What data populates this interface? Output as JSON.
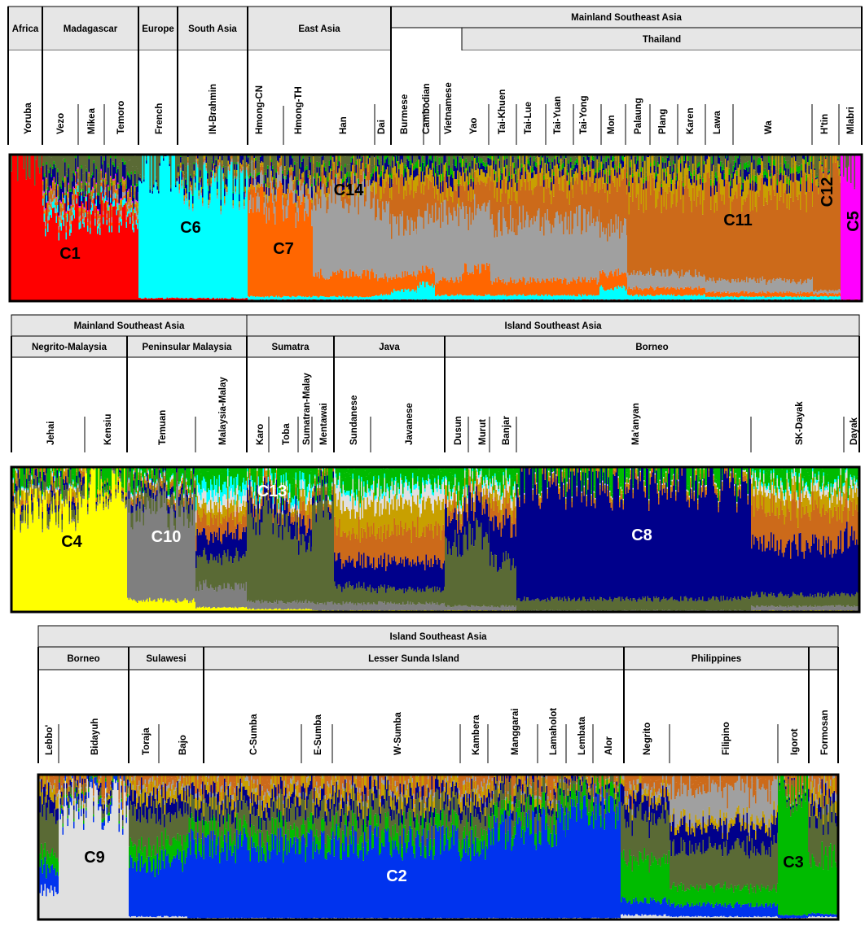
{
  "colors": {
    "C1": "#ff0000",
    "C2": "#0033ee",
    "C3": "#00bb00",
    "C4": "#ffff00",
    "C5": "#ff00ff",
    "C6": "#00ffff",
    "C7": "#ff6600",
    "C8": "#00008b",
    "C9": "#e0e0e0",
    "C10": "#7f7f7f",
    "C11": "#cc6a1a",
    "C12": "#c8a000",
    "C13": "#5a6a35",
    "C14": "#a0a0a0"
  },
  "chart_data": [
    {
      "type": "bar",
      "subtype": "stacked-admixture",
      "panel": "top",
      "header_groups": [
        "Africa",
        "Madagascar",
        "Europe",
        "South Asia",
        "East Asia",
        "Mainland Southeast Asia"
      ],
      "header_subgroups": [
        "Thailand"
      ],
      "populations": [
        "Yoruba",
        "Vezo",
        "Mikea",
        "Temoro",
        "French",
        "IN-Brahmin",
        "Hmong-CN",
        "Hmong-TH",
        "Han",
        "Dai",
        "Burmese",
        "Cambodian",
        "Vietnamese",
        "Yao",
        "Tai-Khuen",
        "Tai-Lue",
        "Tai-Yuan",
        "Tai-Yong",
        "Mon",
        "Palaung",
        "Plang",
        "Karen",
        "Lawa",
        "Wa",
        "H'tin",
        "Mlabri"
      ],
      "component_labels": [
        "C1",
        "C6",
        "C7",
        "C14",
        "C11",
        "C12",
        "C5"
      ],
      "series": [
        {
          "name": "C1",
          "values": [
            0.98,
            0.55,
            0.6,
            0.58,
            0.02,
            0.02,
            0.01,
            0.01,
            0.01,
            0.01,
            0.01,
            0.01,
            0.01,
            0.01,
            0.01,
            0.01,
            0.01,
            0.01,
            0.01,
            0.01,
            0.01,
            0.01,
            0.01,
            0.01,
            0.01,
            0.01
          ]
        },
        {
          "name": "C6",
          "values": [
            0.0,
            0.05,
            0.04,
            0.04,
            0.94,
            0.75,
            0.02,
            0.02,
            0.02,
            0.03,
            0.06,
            0.1,
            0.03,
            0.03,
            0.03,
            0.03,
            0.03,
            0.03,
            0.08,
            0.03,
            0.03,
            0.03,
            0.02,
            0.02,
            0.02,
            0.0
          ]
        },
        {
          "name": "C7",
          "values": [
            0.0,
            0.02,
            0.02,
            0.02,
            0.0,
            0.0,
            0.65,
            0.6,
            0.15,
            0.12,
            0.1,
            0.1,
            0.1,
            0.18,
            0.1,
            0.1,
            0.1,
            0.1,
            0.1,
            0.05,
            0.05,
            0.05,
            0.03,
            0.03,
            0.02,
            0.0
          ]
        },
        {
          "name": "C14",
          "values": [
            0.0,
            0.03,
            0.02,
            0.03,
            0.0,
            0.02,
            0.1,
            0.1,
            0.55,
            0.45,
            0.35,
            0.35,
            0.45,
            0.4,
            0.4,
            0.4,
            0.4,
            0.42,
            0.3,
            0.1,
            0.1,
            0.1,
            0.08,
            0.08,
            0.02,
            0.0
          ]
        },
        {
          "name": "C11",
          "values": [
            0.0,
            0.05,
            0.04,
            0.05,
            0.0,
            0.02,
            0.05,
            0.05,
            0.1,
            0.15,
            0.25,
            0.2,
            0.15,
            0.18,
            0.25,
            0.25,
            0.25,
            0.25,
            0.3,
            0.55,
            0.55,
            0.55,
            0.6,
            0.6,
            0.85,
            0.0
          ]
        },
        {
          "name": "C12",
          "values": [
            0.0,
            0.03,
            0.02,
            0.03,
            0.0,
            0.02,
            0.03,
            0.03,
            0.05,
            0.08,
            0.1,
            0.08,
            0.08,
            0.08,
            0.1,
            0.1,
            0.1,
            0.08,
            0.08,
            0.15,
            0.15,
            0.15,
            0.12,
            0.12,
            0.05,
            0.0
          ]
        },
        {
          "name": "C5",
          "values": [
            0.0,
            0.01,
            0.01,
            0.01,
            0.0,
            0.0,
            0.0,
            0.0,
            0.0,
            0.0,
            0.0,
            0.0,
            0.0,
            0.0,
            0.0,
            0.0,
            0.0,
            0.0,
            0.0,
            0.0,
            0.0,
            0.0,
            0.0,
            0.0,
            0.0,
            0.98
          ]
        },
        {
          "name": "C8",
          "values": [
            0.0,
            0.1,
            0.09,
            0.1,
            0.02,
            0.05,
            0.05,
            0.08,
            0.05,
            0.06,
            0.06,
            0.06,
            0.08,
            0.05,
            0.05,
            0.05,
            0.05,
            0.05,
            0.05,
            0.05,
            0.05,
            0.05,
            0.06,
            0.06,
            0.01,
            0.0
          ]
        },
        {
          "name": "C3",
          "values": [
            0.0,
            0.02,
            0.02,
            0.02,
            0.0,
            0.01,
            0.02,
            0.02,
            0.03,
            0.04,
            0.04,
            0.05,
            0.05,
            0.03,
            0.03,
            0.03,
            0.03,
            0.03,
            0.04,
            0.03,
            0.03,
            0.03,
            0.04,
            0.04,
            0.01,
            0.0
          ]
        },
        {
          "name": "C13",
          "values": [
            0.0,
            0.12,
            0.13,
            0.12,
            0.02,
            0.08,
            0.08,
            0.09,
            0.04,
            0.06,
            0.03,
            0.05,
            0.05,
            0.04,
            0.03,
            0.03,
            0.03,
            0.03,
            0.04,
            0.03,
            0.03,
            0.03,
            0.03,
            0.03,
            0.01,
            0.01
          ]
        }
      ]
    },
    {
      "type": "bar",
      "subtype": "stacked-admixture",
      "panel": "middle",
      "header_groups": [
        "Mainland Southeast Asia",
        "Island Southeast Asia"
      ],
      "header_subgroups": [
        "Negrito-Malaysia",
        "Peninsular Malaysia",
        "Sumatra",
        "Java",
        "Borneo"
      ],
      "populations": [
        "Jehai",
        "Kensiu",
        "Temuan",
        "Malaysia-Malay",
        "Karo",
        "Toba",
        "Sumatran-Malay",
        "Mentawai",
        "Sundanese",
        "Javanese",
        "Dusun",
        "Murut",
        "Banjar",
        "Ma'anyan",
        "SK-Dayak",
        "Dayak"
      ],
      "component_labels": [
        "C4",
        "C10",
        "C13",
        "C8"
      ],
      "series": [
        {
          "name": "C4",
          "values": [
            0.7,
            0.88,
            0.08,
            0.03,
            0.02,
            0.02,
            0.02,
            0.01,
            0.01,
            0.01,
            0.01,
            0.01,
            0.01,
            0.0,
            0.01,
            0.01
          ]
        },
        {
          "name": "C10",
          "values": [
            0.02,
            0.02,
            0.65,
            0.15,
            0.05,
            0.05,
            0.05,
            0.05,
            0.05,
            0.05,
            0.03,
            0.03,
            0.03,
            0.01,
            0.03,
            0.03
          ]
        },
        {
          "name": "C13",
          "values": [
            0.08,
            0.03,
            0.1,
            0.2,
            0.6,
            0.55,
            0.4,
            0.75,
            0.12,
            0.1,
            0.45,
            0.5,
            0.3,
            0.08,
            0.08,
            0.08
          ]
        },
        {
          "name": "C8",
          "values": [
            0.05,
            0.02,
            0.05,
            0.15,
            0.1,
            0.1,
            0.12,
            0.05,
            0.18,
            0.18,
            0.2,
            0.2,
            0.25,
            0.8,
            0.35,
            0.4
          ]
        },
        {
          "name": "C11",
          "values": [
            0.03,
            0.01,
            0.03,
            0.12,
            0.05,
            0.05,
            0.1,
            0.03,
            0.2,
            0.22,
            0.08,
            0.07,
            0.12,
            0.04,
            0.25,
            0.22
          ]
        },
        {
          "name": "C12",
          "values": [
            0.06,
            0.02,
            0.02,
            0.08,
            0.03,
            0.03,
            0.08,
            0.02,
            0.18,
            0.18,
            0.06,
            0.05,
            0.08,
            0.03,
            0.12,
            0.1
          ]
        },
        {
          "name": "C9",
          "values": [
            0.02,
            0.0,
            0.02,
            0.07,
            0.03,
            0.03,
            0.05,
            0.02,
            0.1,
            0.1,
            0.05,
            0.05,
            0.06,
            0.01,
            0.05,
            0.05
          ]
        },
        {
          "name": "C6",
          "values": [
            0.01,
            0.0,
            0.01,
            0.08,
            0.05,
            0.05,
            0.06,
            0.01,
            0.03,
            0.03,
            0.02,
            0.02,
            0.02,
            0.0,
            0.02,
            0.02
          ]
        },
        {
          "name": "C3",
          "values": [
            0.03,
            0.02,
            0.04,
            0.12,
            0.07,
            0.12,
            0.12,
            0.06,
            0.13,
            0.13,
            0.1,
            0.07,
            0.13,
            0.03,
            0.09,
            0.09
          ]
        }
      ]
    },
    {
      "type": "bar",
      "subtype": "stacked-admixture",
      "panel": "bottom",
      "header_groups": [
        "Island Southeast Asia"
      ],
      "header_subgroups": [
        "Borneo",
        "Sulawesi",
        "Lesser Sunda Island",
        "Philippines"
      ],
      "populations": [
        "Lebbo'",
        "Bidayuh",
        "Toraja",
        "Bajo",
        "C-Sumba",
        "E-Sumba",
        "W-Sumba",
        "Kambera",
        "Manggarai",
        "Lamaholot",
        "Lembata",
        "Alor",
        "Negrito",
        "Filipino",
        "Igorot",
        "Formosan"
      ],
      "component_labels": [
        "C9",
        "C2",
        "C3"
      ],
      "series": [
        {
          "name": "C9",
          "values": [
            0.2,
            0.78,
            0.02,
            0.02,
            0.01,
            0.01,
            0.01,
            0.01,
            0.01,
            0.01,
            0.01,
            0.01,
            0.03,
            0.02,
            0.01,
            0.02
          ]
        },
        {
          "name": "C2",
          "values": [
            0.15,
            0.05,
            0.35,
            0.4,
            0.5,
            0.5,
            0.52,
            0.5,
            0.6,
            0.65,
            0.7,
            0.75,
            0.1,
            0.08,
            0.02,
            0.02
          ]
        },
        {
          "name": "C3",
          "values": [
            0.1,
            0.02,
            0.12,
            0.12,
            0.1,
            0.1,
            0.1,
            0.1,
            0.1,
            0.1,
            0.1,
            0.1,
            0.28,
            0.12,
            0.88,
            0.4
          ]
        },
        {
          "name": "C13",
          "values": [
            0.3,
            0.05,
            0.25,
            0.2,
            0.15,
            0.15,
            0.14,
            0.15,
            0.12,
            0.1,
            0.08,
            0.06,
            0.3,
            0.28,
            0.04,
            0.3
          ]
        },
        {
          "name": "C8",
          "values": [
            0.1,
            0.04,
            0.1,
            0.1,
            0.08,
            0.08,
            0.08,
            0.08,
            0.06,
            0.05,
            0.04,
            0.03,
            0.12,
            0.15,
            0.02,
            0.08
          ]
        },
        {
          "name": "C12",
          "values": [
            0.08,
            0.03,
            0.08,
            0.08,
            0.08,
            0.08,
            0.08,
            0.08,
            0.06,
            0.05,
            0.04,
            0.03,
            0.05,
            0.05,
            0.01,
            0.08
          ]
        },
        {
          "name": "C14",
          "values": [
            0.02,
            0.01,
            0.03,
            0.03,
            0.03,
            0.03,
            0.03,
            0.03,
            0.02,
            0.02,
            0.01,
            0.01,
            0.04,
            0.22,
            0.01,
            0.05
          ]
        },
        {
          "name": "C11",
          "values": [
            0.05,
            0.02,
            0.05,
            0.05,
            0.05,
            0.05,
            0.04,
            0.05,
            0.03,
            0.02,
            0.02,
            0.01,
            0.08,
            0.08,
            0.01,
            0.05
          ]
        }
      ]
    }
  ]
}
